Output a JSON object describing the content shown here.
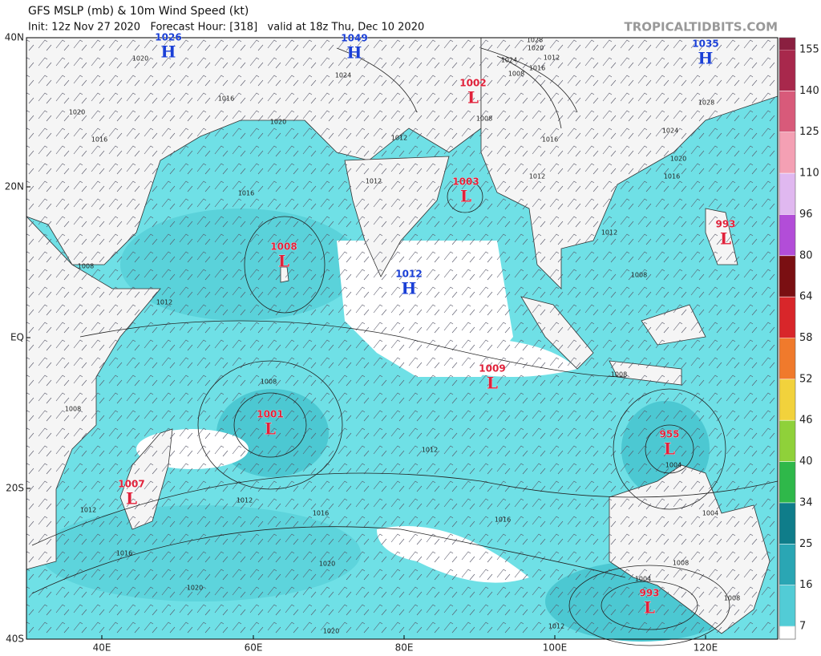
{
  "header": {
    "title": "GFS MSLP (mb) & 10m Wind Speed (kt)",
    "subtitle": "Init: 12z Nov 27 2020   Forecast Hour: [318]   valid at 18z Thu, Dec 10 2020",
    "site": "TROPICALTIDBITS.COM"
  },
  "latitude_labels": [
    "40N",
    "20N",
    "EQ",
    "20S",
    "40S"
  ],
  "longitude_labels": [
    "40E",
    "60E",
    "80E",
    "100E",
    "120E"
  ],
  "pressure_centers": [
    {
      "label": "H",
      "value": 1026
    },
    {
      "label": "H",
      "value": 1049
    },
    {
      "label": "H",
      "value": 1035
    },
    {
      "label": "L",
      "value": 1002
    },
    {
      "label": "L",
      "value": 1003
    },
    {
      "label": "L",
      "value": 993
    },
    {
      "label": "L",
      "value": 1008
    },
    {
      "label": "H",
      "value": 1012
    },
    {
      "label": "L",
      "value": 1009
    },
    {
      "label": "L",
      "value": 1001
    },
    {
      "label": "L",
      "value": 955
    },
    {
      "label": "L",
      "value": 1007
    },
    {
      "label": "L",
      "value": 993
    }
  ],
  "isobar_labels": [
    1020,
    1016,
    1020,
    1020,
    1016,
    1024,
    1012,
    1012,
    1016,
    1012,
    1008,
    1008,
    1008,
    1012,
    1012,
    1016,
    1016,
    1012,
    1016,
    1020,
    1020,
    1020,
    1012,
    1008,
    1004,
    1004,
    1004,
    1008,
    1008,
    1008,
    1012,
    1012,
    1016,
    1020,
    1024,
    1028,
    1016,
    1008,
    1028,
    1020,
    1012,
    1024,
    1016,
    1008
  ],
  "wind_speed_scale": {
    "ticks": [
      7,
      16,
      25,
      34,
      40,
      46,
      52,
      58,
      64,
      80,
      96,
      110,
      125,
      140,
      155
    ]
  }
}
